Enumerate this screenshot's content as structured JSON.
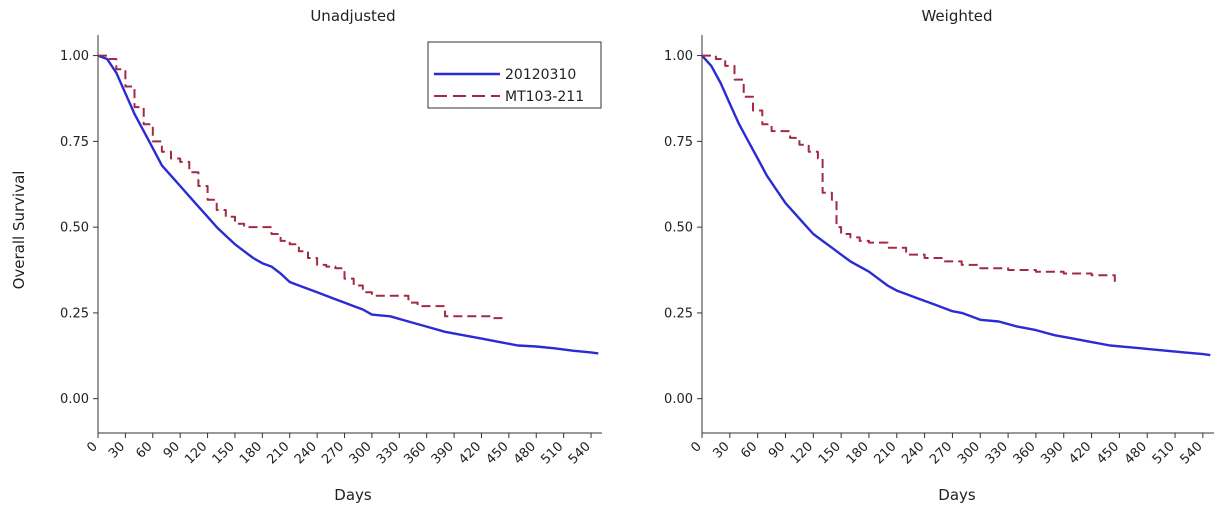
{
  "chart_data": [
    {
      "type": "line",
      "title": "Unadjusted",
      "xlabel": "Days",
      "ylabel": "Overall Survival",
      "xlim": [
        0,
        552
      ],
      "ylim": [
        -0.1,
        1.06
      ],
      "x_ticks": [
        0,
        30,
        60,
        90,
        120,
        150,
        180,
        210,
        240,
        270,
        300,
        330,
        360,
        390,
        420,
        450,
        480,
        510,
        540
      ],
      "y_ticks": [
        "0.00",
        "0.25",
        "0.50",
        "0.75",
        "1.00"
      ],
      "legend_position": "top-right",
      "series": [
        {
          "name": "20120310",
          "color": "#2b2bd6",
          "style": "solid",
          "step": false,
          "x": [
            0,
            10,
            20,
            30,
            40,
            50,
            60,
            70,
            80,
            90,
            100,
            110,
            120,
            130,
            140,
            150,
            160,
            170,
            180,
            190,
            200,
            210,
            220,
            230,
            240,
            250,
            260,
            270,
            280,
            290,
            300,
            320,
            340,
            360,
            380,
            400,
            420,
            440,
            460,
            480,
            500,
            520,
            540,
            548
          ],
          "y": [
            1.0,
            0.99,
            0.95,
            0.89,
            0.83,
            0.78,
            0.73,
            0.68,
            0.65,
            0.62,
            0.59,
            0.56,
            0.53,
            0.5,
            0.475,
            0.45,
            0.43,
            0.41,
            0.395,
            0.385,
            0.365,
            0.34,
            0.33,
            0.32,
            0.31,
            0.3,
            0.29,
            0.28,
            0.27,
            0.26,
            0.245,
            0.24,
            0.225,
            0.21,
            0.195,
            0.185,
            0.175,
            0.165,
            0.155,
            0.152,
            0.147,
            0.14,
            0.135,
            0.132
          ]
        },
        {
          "name": "MT103-211",
          "color": "#a32a43",
          "style": "dashed",
          "step": true,
          "x": [
            0,
            10,
            20,
            30,
            40,
            50,
            60,
            70,
            80,
            90,
            100,
            110,
            120,
            130,
            140,
            150,
            160,
            170,
            180,
            190,
            200,
            210,
            220,
            230,
            240,
            250,
            260,
            270,
            280,
            290,
            300,
            310,
            320,
            330,
            340,
            350,
            360,
            380,
            400,
            420,
            430,
            445
          ],
          "y": [
            1.0,
            0.99,
            0.96,
            0.91,
            0.85,
            0.8,
            0.75,
            0.72,
            0.7,
            0.69,
            0.66,
            0.62,
            0.58,
            0.55,
            0.53,
            0.51,
            0.5,
            0.5,
            0.5,
            0.48,
            0.46,
            0.45,
            0.43,
            0.41,
            0.39,
            0.385,
            0.38,
            0.35,
            0.33,
            0.31,
            0.3,
            0.3,
            0.3,
            0.3,
            0.28,
            0.27,
            0.27,
            0.24,
            0.24,
            0.24,
            0.235,
            0.23
          ]
        }
      ]
    },
    {
      "type": "line",
      "title": "Weighted",
      "xlabel": "Days",
      "ylabel": "",
      "xlim": [
        0,
        552
      ],
      "ylim": [
        -0.1,
        1.06
      ],
      "x_ticks": [
        0,
        30,
        60,
        90,
        120,
        150,
        180,
        210,
        240,
        270,
        300,
        330,
        360,
        390,
        420,
        450,
        480,
        510,
        540
      ],
      "y_ticks": [
        "0.00",
        "0.25",
        "0.50",
        "0.75",
        "1.00"
      ],
      "series": [
        {
          "name": "20120310",
          "color": "#2b2bd6",
          "style": "solid",
          "step": false,
          "x": [
            0,
            10,
            20,
            30,
            40,
            50,
            60,
            70,
            80,
            90,
            100,
            110,
            120,
            130,
            140,
            150,
            160,
            170,
            180,
            190,
            200,
            210,
            220,
            230,
            240,
            250,
            260,
            270,
            280,
            290,
            300,
            320,
            340,
            360,
            380,
            400,
            420,
            440,
            460,
            480,
            500,
            520,
            540,
            548
          ],
          "y": [
            1.0,
            0.97,
            0.92,
            0.86,
            0.8,
            0.75,
            0.7,
            0.65,
            0.61,
            0.57,
            0.54,
            0.51,
            0.48,
            0.46,
            0.44,
            0.42,
            0.4,
            0.385,
            0.37,
            0.35,
            0.33,
            0.315,
            0.305,
            0.295,
            0.285,
            0.275,
            0.265,
            0.255,
            0.25,
            0.24,
            0.23,
            0.225,
            0.21,
            0.2,
            0.185,
            0.175,
            0.165,
            0.155,
            0.15,
            0.145,
            0.14,
            0.135,
            0.13,
            0.127
          ]
        },
        {
          "name": "MT103-211",
          "color": "#a32a43",
          "style": "dashed",
          "step": true,
          "x": [
            0,
            15,
            25,
            35,
            45,
            55,
            65,
            75,
            85,
            95,
            105,
            115,
            125,
            130,
            140,
            145,
            150,
            160,
            170,
            180,
            200,
            220,
            240,
            260,
            280,
            300,
            330,
            360,
            390,
            420,
            445
          ],
          "y": [
            1.0,
            0.99,
            0.97,
            0.93,
            0.88,
            0.84,
            0.8,
            0.78,
            0.78,
            0.76,
            0.74,
            0.72,
            0.7,
            0.6,
            0.58,
            0.5,
            0.48,
            0.47,
            0.46,
            0.455,
            0.44,
            0.42,
            0.41,
            0.4,
            0.39,
            0.38,
            0.375,
            0.37,
            0.365,
            0.36,
            0.34
          ]
        }
      ]
    }
  ]
}
